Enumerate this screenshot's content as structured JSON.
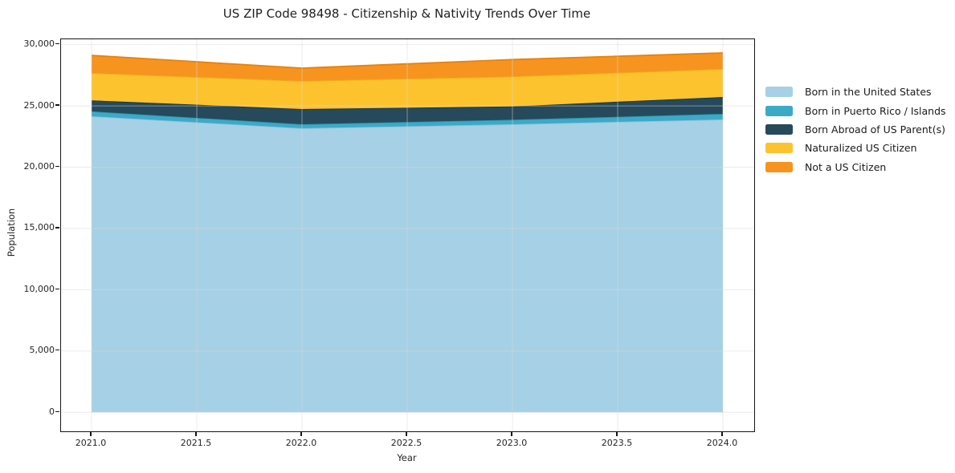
{
  "title": "US ZIP Code 98498 - Citizenship & Nativity Trends Over Time",
  "axes": {
    "x_label": "Year",
    "y_label": "Population",
    "x_ticks": [
      {
        "v": 2021.0,
        "label": "2021.0"
      },
      {
        "v": 2021.5,
        "label": "2021.5"
      },
      {
        "v": 2022.0,
        "label": "2022.0"
      },
      {
        "v": 2022.5,
        "label": "2022.5"
      },
      {
        "v": 2023.0,
        "label": "2023.0"
      },
      {
        "v": 2023.5,
        "label": "2023.5"
      },
      {
        "v": 2024.0,
        "label": "2024.0"
      }
    ],
    "y_ticks": [
      {
        "v": 0,
        "label": "0"
      },
      {
        "v": 5000,
        "label": "5,000"
      },
      {
        "v": 10000,
        "label": "10,000"
      },
      {
        "v": 15000,
        "label": "15,000"
      },
      {
        "v": 20000,
        "label": "20,000"
      },
      {
        "v": 25000,
        "label": "25,000"
      },
      {
        "v": 30000,
        "label": "30,000"
      }
    ]
  },
  "chart_data": {
    "type": "area",
    "stacked": true,
    "title": "US ZIP Code 98498 - Citizenship & Nativity Trends Over Time",
    "xlabel": "Year",
    "ylabel": "Population",
    "x": [
      2021,
      2022,
      2023,
      2024
    ],
    "series": [
      {
        "name": "Born in the United States",
        "color": "#a6d0e6",
        "edge_color": "#8cc1da",
        "values": [
          24150,
          23170,
          23500,
          23890
        ]
      },
      {
        "name": "Born in Puerto Rico / Islands",
        "color": "#3caac6",
        "edge_color": "#2b94ad",
        "values": [
          400,
          330,
          370,
          460
        ]
      },
      {
        "name": "Born Abroad of US Parent(s)",
        "color": "#26495c",
        "edge_color": "#183645",
        "values": [
          900,
          1240,
          1090,
          1370
        ]
      },
      {
        "name": "Naturalized US Citizen",
        "color": "#fdc32f",
        "edge_color": "#eeb01c",
        "values": [
          2230,
          2290,
          2440,
          2290
        ]
      },
      {
        "name": "Not a US Citizen",
        "color": "#f7941f",
        "edge_color": "#e5820e",
        "values": [
          1440,
          1050,
          1380,
          1310
        ]
      }
    ],
    "totals": [
      29120,
      28080,
      28780,
      29320
    ],
    "ylim": [
      0,
      30000
    ],
    "xlim": [
      2020.85,
      2024.15
    ],
    "grid": true,
    "grid_color": "#d8d8d8",
    "legend_position": "right"
  }
}
